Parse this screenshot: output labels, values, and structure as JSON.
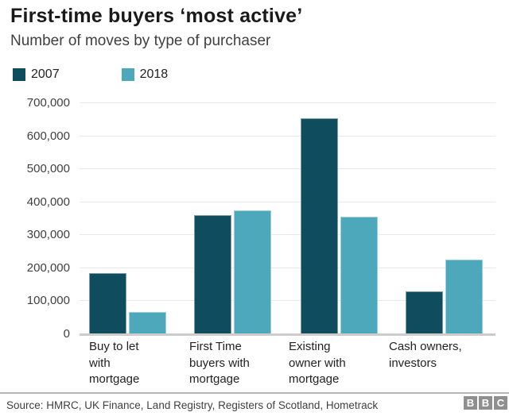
{
  "header": {
    "title": "First-time buyers ‘most active’",
    "subtitle": "Number of moves by type of purchaser"
  },
  "legend": {
    "items": [
      {
        "label": "2007",
        "color": "#0f4d5e"
      },
      {
        "label": "2018",
        "color": "#4ea8bc"
      }
    ]
  },
  "chart_data": {
    "type": "bar",
    "title": "First-time buyers ‘most active’",
    "subtitle": "Number of moves by type of purchaser",
    "categories": [
      "Buy to let with mortgage",
      "First Time buyers with mortgage",
      "Existing owner with mortgage",
      "Cash owners, investors"
    ],
    "category_labels_wrapped": [
      "Buy to let\nwith\nmortgage",
      "First Time\nbuyers with\nmortgage",
      "Existing\nowner with\nmortgage",
      "Cash owners,\ninvestors"
    ],
    "series": [
      {
        "name": "2007",
        "color": "#0f4d5e",
        "values": [
          182000,
          358000,
          652000,
          128000
        ]
      },
      {
        "name": "2018",
        "color": "#4ea8bc",
        "values": [
          65000,
          373000,
          354000,
          224000
        ]
      }
    ],
    "ylabel": "",
    "xlabel": "",
    "ylim": [
      0,
      700000
    ],
    "yticks": [
      0,
      100000,
      200000,
      300000,
      400000,
      500000,
      600000,
      700000
    ],
    "ytick_labels": [
      "0",
      "100,000",
      "200,000",
      "300,000",
      "400,000",
      "500,000",
      "600,000",
      "700,000"
    ],
    "grid": "horizontal",
    "legend_position": "top-left"
  },
  "footer": {
    "source": "Source: HMRC, UK Finance, Land Registry, Registers of Scotland, Hometrack",
    "logo_letters": [
      "B",
      "B",
      "C"
    ]
  }
}
